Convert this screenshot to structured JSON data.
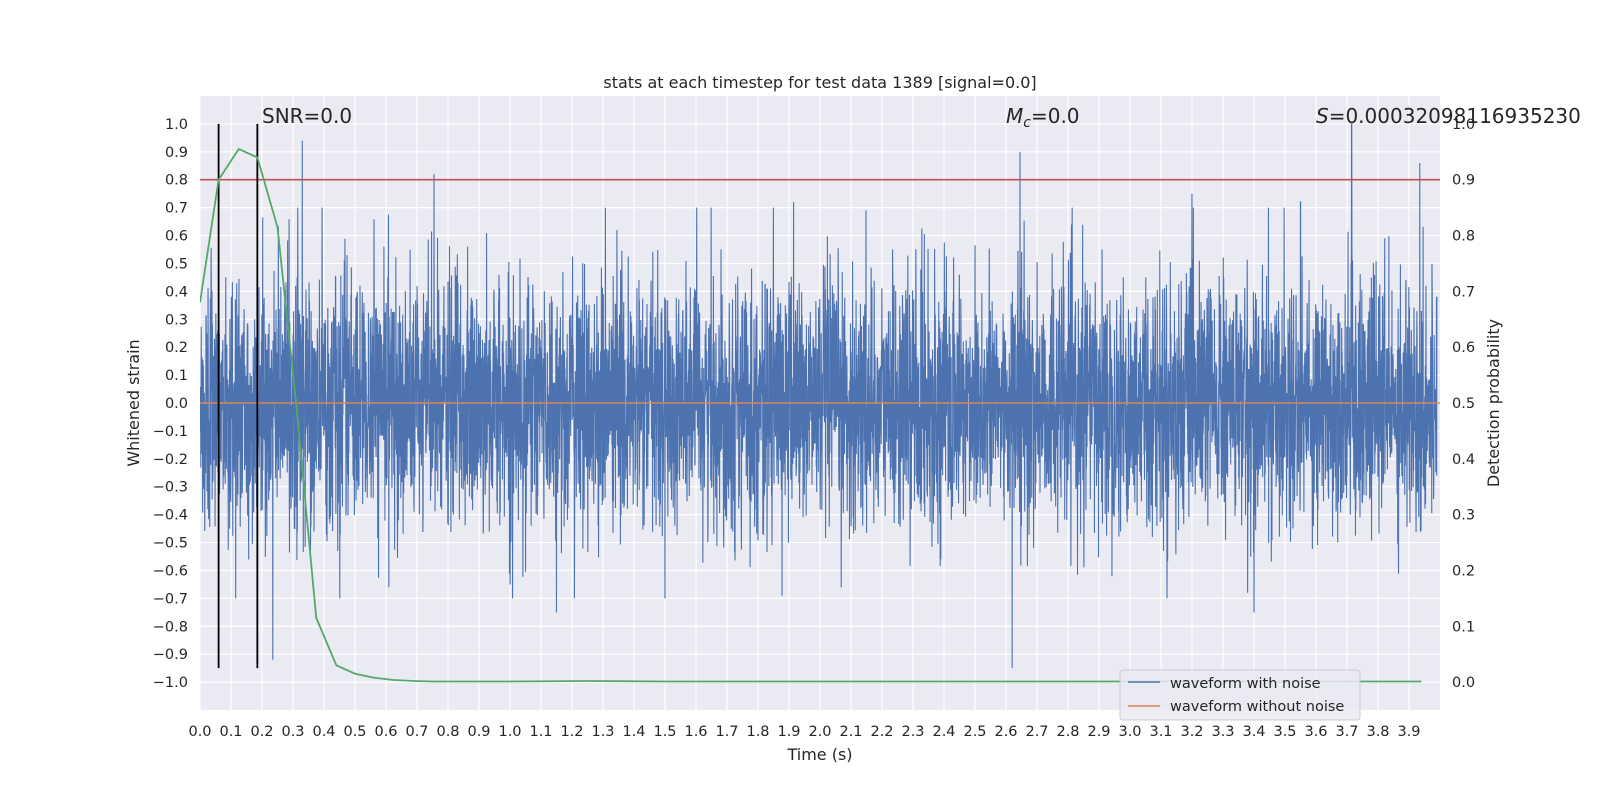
{
  "chart_data": {
    "type": "line",
    "title": "stats at each timestep for test data 1389 [signal=0.0]",
    "xlabel": "Time (s)",
    "ylabel": "Whitened strain",
    "y2label": "Detection probability",
    "xlim": [
      0.0,
      4.0
    ],
    "ylim": [
      -1.1,
      1.1
    ],
    "y2lim": [
      -0.05,
      1.05
    ],
    "x_ticks": [
      0.0,
      0.1,
      0.2,
      0.3,
      0.4,
      0.5,
      0.6,
      0.7,
      0.8,
      0.9,
      1.0,
      1.1,
      1.2,
      1.3,
      1.4,
      1.5,
      1.6,
      1.7,
      1.8,
      1.9,
      2.0,
      2.1,
      2.2,
      2.3,
      2.4,
      2.5,
      2.6,
      2.7,
      2.8,
      2.9,
      3.0,
      3.1,
      3.2,
      3.3,
      3.4,
      3.5,
      3.6,
      3.7,
      3.8,
      3.9
    ],
    "y_ticks": [
      1.0,
      0.9,
      0.8,
      0.7,
      0.6,
      0.5,
      0.4,
      0.3,
      0.2,
      0.1,
      0.0,
      -0.1,
      -0.2,
      -0.3,
      -0.4,
      -0.5,
      -0.6,
      -0.7,
      -0.8,
      -0.9,
      -1.0
    ],
    "y2_ticks": [
      1.0,
      0.9,
      0.8,
      0.7,
      0.6,
      0.5,
      0.4,
      0.3,
      0.2,
      0.1,
      0.0
    ],
    "grid": true,
    "legend_position": "bottom-right",
    "background": "#eaeaf2",
    "annotations": {
      "snr": "SNR=0.0",
      "mc_symbol": "M",
      "mc_sub": "c",
      "mc_value": "=0.0",
      "s_symbol": "S",
      "s_value": "=0.00032098116935230"
    },
    "threshold": {
      "value": 0.9,
      "axis": "y2",
      "color": "#c44e52"
    },
    "vertical_lines": {
      "x": [
        0.06,
        0.185
      ],
      "color": "#000000"
    },
    "series": [
      {
        "name": "waveform with noise",
        "axis": "y",
        "color": "#4c72b0",
        "amplitude_std": 0.22,
        "peaks": [
          {
            "x": 0.33,
            "y": 0.94
          },
          {
            "x": 0.755,
            "y": 0.82
          },
          {
            "x": 2.645,
            "y": 0.9
          },
          {
            "x": 3.715,
            "y": 1.0
          },
          {
            "x": 3.935,
            "y": 0.86
          },
          {
            "x": 2.62,
            "y": -0.95
          },
          {
            "x": 0.235,
            "y": -0.92
          },
          {
            "x": 1.345,
            "y": 0.62
          },
          {
            "x": 1.915,
            "y": 0.72
          },
          {
            "x": 3.2,
            "y": 0.75
          },
          {
            "x": 3.4,
            "y": -0.75
          },
          {
            "x": 1.15,
            "y": -0.75
          },
          {
            "x": 3.55,
            "y": 0.72
          }
        ]
      },
      {
        "name": "waveform without noise",
        "axis": "y",
        "color": "#dd8452",
        "x": [
          0.0,
          4.0
        ],
        "y": [
          0.0,
          0.0
        ]
      },
      {
        "name": "detection probability",
        "axis": "y2",
        "color": "#55a868",
        "x": [
          0.0,
          0.06,
          0.125,
          0.185,
          0.25,
          0.31,
          0.375,
          0.44,
          0.5,
          0.56,
          0.62,
          0.69,
          0.75,
          1.0,
          1.25,
          1.5,
          2.0,
          2.5,
          3.0,
          3.5,
          3.94
        ],
        "y": [
          0.68,
          0.9,
          0.955,
          0.94,
          0.815,
          0.5,
          0.115,
          0.03,
          0.015,
          0.008,
          0.004,
          0.002,
          0.001,
          0.001,
          0.002,
          0.001,
          0.001,
          0.001,
          0.001,
          0.001,
          0.001
        ]
      }
    ]
  }
}
